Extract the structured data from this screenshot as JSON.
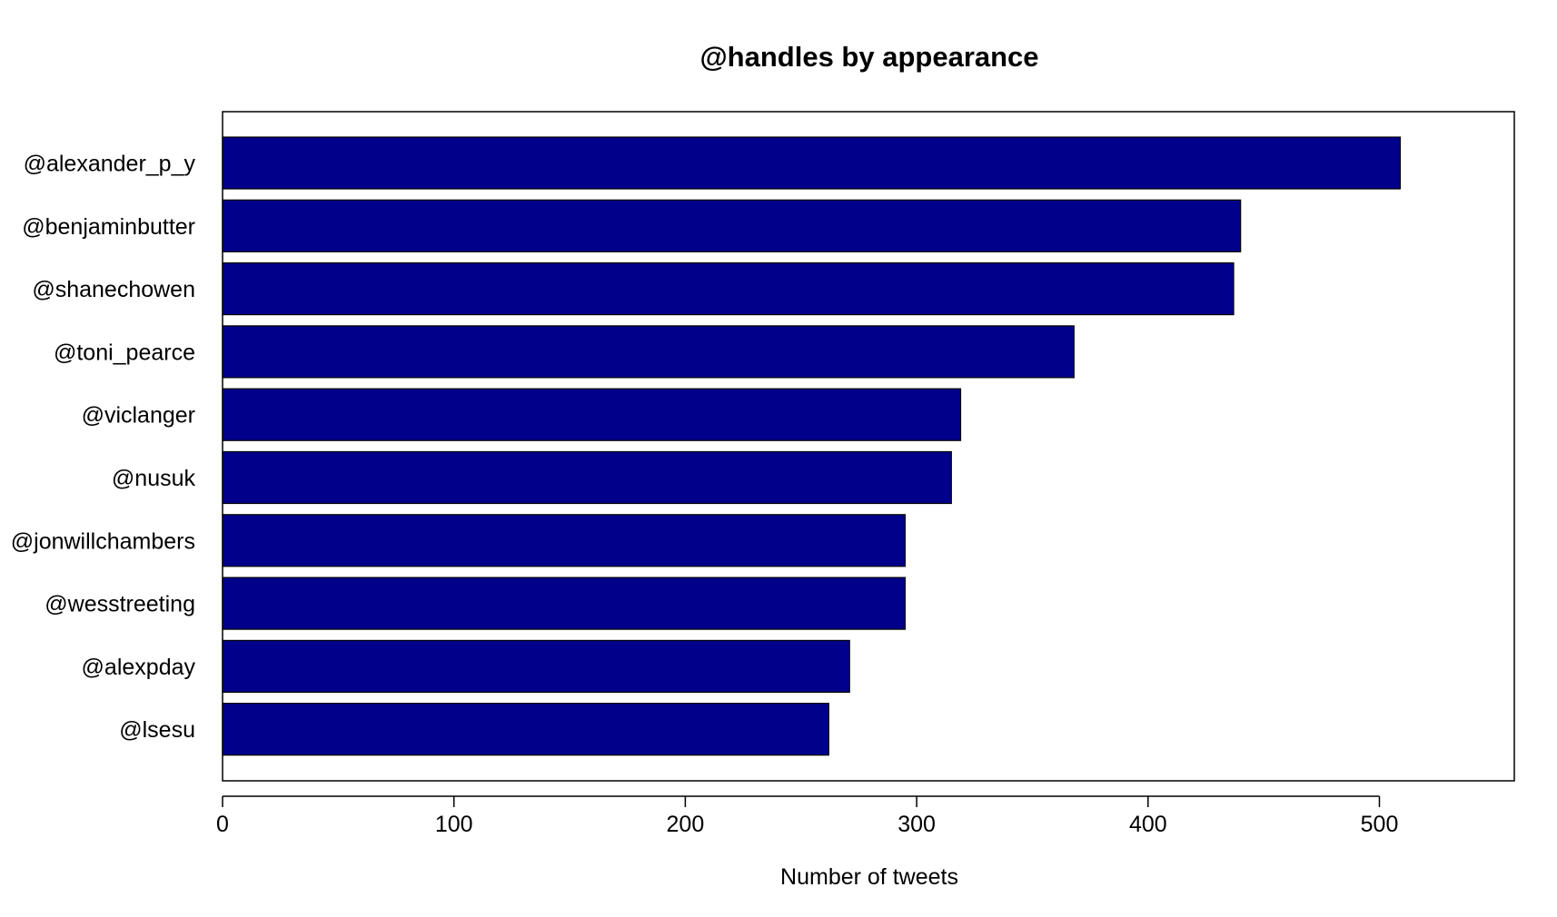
{
  "chart_data": {
    "type": "bar",
    "orientation": "horizontal",
    "title": "@handles by appearance",
    "xlabel": "Number of tweets",
    "ylabel": "",
    "categories": [
      "@alexander_p_y",
      "@benjaminbutter",
      "@shanechowen",
      "@toni_pearce",
      "@viclanger",
      "@nusuk",
      "@jonwillchambers",
      "@wesstreeting",
      "@alexpday",
      "@lsesu"
    ],
    "values": [
      509,
      440,
      437,
      368,
      319,
      315,
      295,
      295,
      271,
      262
    ],
    "xlim": [
      0,
      558
    ],
    "xticks": [
      0,
      100,
      200,
      300,
      400,
      500
    ],
    "xtick_labels": [
      "0",
      "100",
      "200",
      "300",
      "400",
      "500"
    ],
    "bar_color": "#00008B",
    "grid": false,
    "legend": "none"
  }
}
